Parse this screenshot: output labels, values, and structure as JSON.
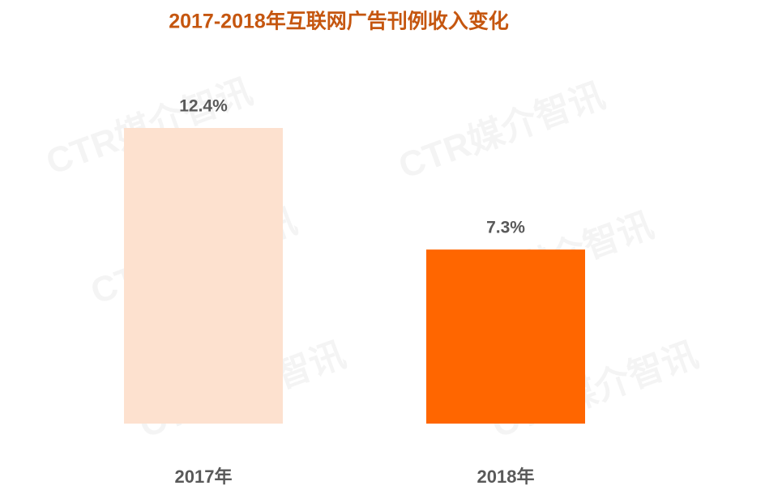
{
  "chart_data": {
    "type": "bar",
    "title": "2017-2018年互联网广告刊例收入变化",
    "categories": [
      "2017年",
      "2018年"
    ],
    "values": [
      12.4,
      7.3
    ],
    "value_labels": [
      "12.4%",
      "7.3%"
    ],
    "colors": [
      "#fde1cf",
      "#ff6600"
    ],
    "watermark": "CTR媒介智讯"
  }
}
